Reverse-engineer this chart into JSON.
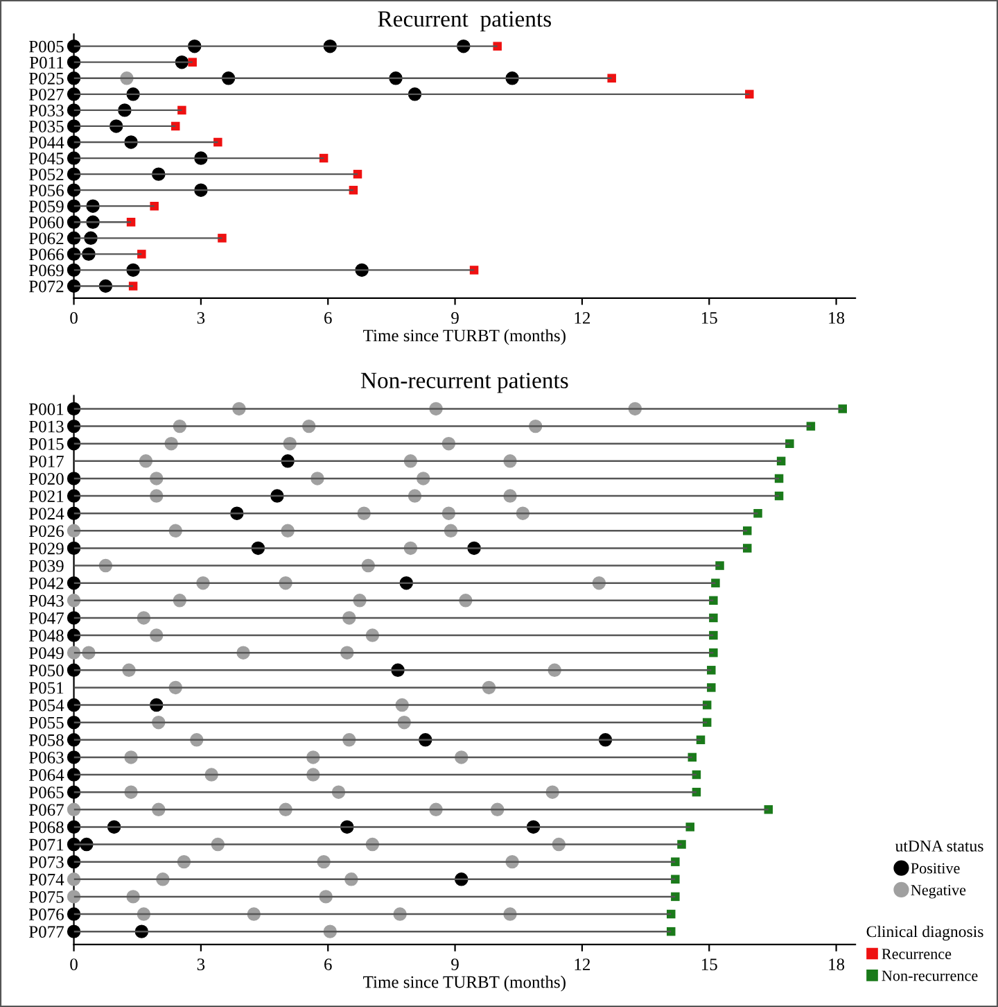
{
  "chart_data": [
    {
      "type": "bar",
      "orientation": "horizontal",
      "title": "Recurrent  patients",
      "xlabel": "Time since TURBT (months)",
      "xlim": [
        0,
        18.45
      ],
      "xticks": [
        0,
        3,
        6,
        9,
        12,
        15,
        18
      ],
      "grid": false,
      "legend": "right",
      "categories": [
        "P005",
        "P011",
        "P025",
        "P027",
        "P033",
        "P035",
        "P044",
        "P045",
        "P052",
        "P056",
        "P059",
        "P060",
        "P062",
        "P066",
        "P069",
        "P072"
      ],
      "series": [
        {
          "color": "#555555",
          "values": [
            10.0,
            2.8,
            12.7,
            15.95,
            2.55,
            2.4,
            3.4,
            5.9,
            6.7,
            6.6,
            1.9,
            1.35,
            3.5,
            1.6,
            9.45,
            1.4
          ]
        },
        {
          "type": "scatter",
          "color": "#000000",
          "marker": "circle",
          "values": [
            0,
            0,
            0,
            0,
            0,
            0,
            0,
            0,
            0,
            0,
            0,
            0,
            0,
            0,
            0,
            0
          ]
        },
        {
          "type": "scatter",
          "color": "#000000",
          "marker": "circle",
          "values": [
            2.85,
            2.55,
            3.65,
            1.4,
            1.2,
            1.0,
            1.35,
            3.0,
            2.0,
            3.0,
            0.45,
            0.45,
            0.4,
            0.35,
            1.4,
            0.75
          ]
        },
        {
          "type": "scatter",
          "color": "#000000",
          "marker": "circle",
          "values": [
            6.05,
            null,
            7.6,
            8.05,
            null,
            null,
            null,
            null,
            null,
            null,
            null,
            null,
            null,
            null,
            6.8,
            null
          ]
        },
        {
          "type": "scatter",
          "color": "#000000",
          "marker": "circle",
          "values": [
            9.2,
            null,
            10.35,
            null,
            null,
            null,
            null,
            null,
            null,
            null,
            null,
            null,
            null,
            null,
            null,
            null
          ]
        },
        {
          "type": "scatter",
          "color": "#a0a0a0",
          "marker": "circle",
          "values": [
            null,
            null,
            1.25,
            null,
            null,
            null,
            null,
            null,
            null,
            null,
            null,
            null,
            null,
            null,
            null,
            null
          ]
        },
        {
          "type": "scatter",
          "name": "Recurrence",
          "color": "#ee1111",
          "marker": "square",
          "values": [
            10.0,
            2.8,
            12.7,
            15.95,
            2.55,
            2.4,
            3.4,
            5.9,
            6.7,
            6.6,
            1.9,
            1.35,
            3.5,
            1.6,
            9.45,
            1.4
          ]
        }
      ]
    },
    {
      "type": "bar",
      "orientation": "horizontal",
      "title": "Non-recurrent patients",
      "xlabel": "Time since TURBT (months)",
      "xlim": [
        0,
        18.45
      ],
      "xticks": [
        0,
        3,
        6,
        9,
        12,
        15,
        18
      ],
      "grid": false,
      "legend": "right",
      "legend_title": [
        "utDNA status",
        "Clinical diagnosis"
      ],
      "categories": [
        "P001",
        "P013",
        "P015",
        "P017",
        "P020",
        "P021",
        "P024",
        "P026",
        "P029",
        "P039",
        "P042",
        "P043",
        "P047",
        "P048",
        "P049",
        "P050",
        "P051",
        "P054",
        "P055",
        "P058",
        "P063",
        "P064",
        "P065",
        "P067",
        "P068",
        "P071",
        "P073",
        "P074",
        "P075",
        "P076",
        "P077"
      ],
      "series": [
        {
          "color": "#555555",
          "values": [
            18.15,
            17.4,
            16.9,
            16.7,
            16.65,
            16.65,
            16.15,
            15.9,
            15.9,
            15.25,
            15.15,
            15.1,
            15.1,
            15.1,
            15.1,
            15.05,
            15.05,
            14.95,
            14.95,
            14.8,
            14.6,
            14.7,
            14.7,
            16.4,
            14.55,
            14.35,
            14.2,
            14.2,
            14.2,
            14.1,
            14.1
          ]
        },
        {
          "type": "scatter",
          "name": "Positive",
          "color": "#000000",
          "marker": "circle",
          "values": [
            0,
            0,
            0,
            5.05,
            0,
            0,
            0,
            null,
            0,
            null,
            0,
            null,
            0,
            0,
            null,
            0,
            null,
            0,
            0,
            0,
            0,
            0,
            0,
            null,
            0,
            0,
            0,
            9.15,
            null,
            0,
            0
          ]
        },
        {
          "type": "scatter",
          "color": "#000000",
          "marker": "circle",
          "values": [
            null,
            null,
            null,
            null,
            null,
            4.8,
            3.85,
            null,
            4.35,
            null,
            7.85,
            null,
            null,
            null,
            null,
            7.65,
            null,
            1.95,
            null,
            8.3,
            null,
            null,
            null,
            null,
            0.95,
            0.3,
            null,
            null,
            null,
            null,
            1.6
          ]
        },
        {
          "type": "scatter",
          "color": "#000000",
          "marker": "circle",
          "values": [
            null,
            null,
            null,
            null,
            null,
            null,
            null,
            null,
            9.45,
            null,
            null,
            null,
            null,
            null,
            null,
            null,
            null,
            null,
            null,
            12.55,
            null,
            null,
            null,
            null,
            6.45,
            null,
            null,
            null,
            null,
            null,
            null
          ]
        },
        {
          "type": "scatter",
          "color": "#000000",
          "marker": "circle",
          "values": [
            null,
            null,
            null,
            null,
            null,
            null,
            null,
            null,
            null,
            null,
            null,
            null,
            null,
            null,
            null,
            null,
            null,
            null,
            null,
            null,
            null,
            null,
            null,
            null,
            10.85,
            null,
            null,
            null,
            null,
            null,
            null
          ]
        },
        {
          "type": "scatter",
          "name": "Negative",
          "color": "#a0a0a0",
          "marker": "circle",
          "values": [
            3.9,
            2.5,
            2.3,
            1.7,
            1.95,
            1.95,
            6.85,
            0,
            7.95,
            0.75,
            3.05,
            0,
            1.65,
            1.95,
            0,
            1.3,
            2.4,
            7.75,
            2.0,
            2.9,
            1.35,
            3.25,
            1.35,
            0,
            null,
            3.4,
            2.6,
            0,
            0,
            1.65,
            6.05
          ]
        },
        {
          "type": "scatter",
          "color": "#a0a0a0",
          "marker": "circle",
          "values": [
            8.55,
            5.55,
            5.1,
            7.95,
            5.75,
            8.05,
            8.85,
            2.4,
            null,
            6.95,
            5.0,
            2.5,
            6.5,
            7.05,
            0.35,
            11.35,
            9.8,
            null,
            7.8,
            6.5,
            5.65,
            5.65,
            6.25,
            2.0,
            null,
            7.05,
            5.9,
            2.1,
            1.4,
            4.25,
            null
          ]
        },
        {
          "type": "scatter",
          "color": "#a0a0a0",
          "marker": "circle",
          "values": [
            13.25,
            10.9,
            8.85,
            10.3,
            8.25,
            10.3,
            10.6,
            5.05,
            null,
            null,
            12.4,
            6.75,
            null,
            null,
            4.0,
            null,
            null,
            null,
            null,
            null,
            9.15,
            null,
            11.3,
            5.0,
            null,
            11.45,
            10.35,
            6.55,
            5.95,
            7.7,
            null
          ]
        },
        {
          "type": "scatter",
          "color": "#a0a0a0",
          "marker": "circle",
          "values": [
            null,
            null,
            null,
            null,
            null,
            null,
            null,
            8.9,
            null,
            null,
            null,
            9.25,
            null,
            null,
            6.45,
            null,
            null,
            null,
            null,
            null,
            null,
            null,
            null,
            8.55,
            null,
            null,
            null,
            null,
            null,
            10.3,
            null
          ]
        },
        {
          "type": "scatter",
          "color": "#a0a0a0",
          "marker": "circle",
          "values": [
            null,
            null,
            null,
            null,
            null,
            null,
            null,
            null,
            null,
            null,
            null,
            null,
            null,
            null,
            null,
            null,
            null,
            null,
            null,
            null,
            null,
            null,
            null,
            10.0,
            null,
            null,
            null,
            null,
            null,
            null,
            null
          ]
        },
        {
          "type": "scatter",
          "name": "Non-recurrence",
          "color": "#1a7a1a",
          "marker": "square",
          "values": [
            18.15,
            17.4,
            16.9,
            16.7,
            16.65,
            16.65,
            16.15,
            15.9,
            15.9,
            15.25,
            15.15,
            15.1,
            15.1,
            15.1,
            15.1,
            15.05,
            15.05,
            14.95,
            14.95,
            14.8,
            14.6,
            14.7,
            14.7,
            16.4,
            14.55,
            14.35,
            14.2,
            14.2,
            14.2,
            14.1,
            14.1
          ]
        }
      ]
    }
  ]
}
